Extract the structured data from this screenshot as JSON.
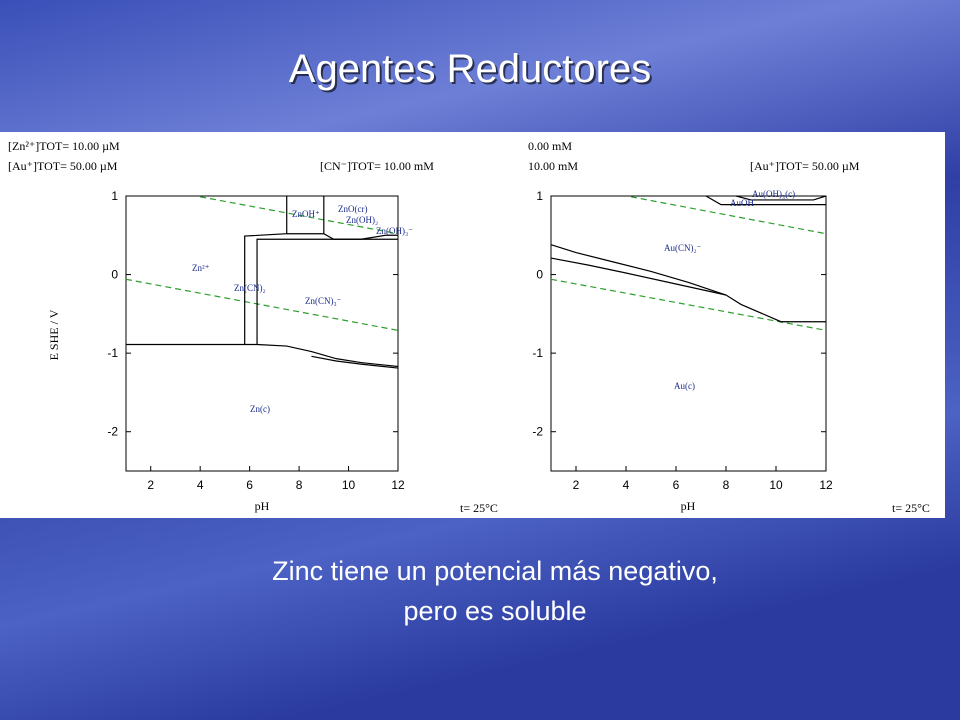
{
  "slide": {
    "title": "Agentes Reductores",
    "body": [
      "Zinc tiene un potencial más negativo,",
      "pero es soluble"
    ]
  },
  "chart_data": [
    {
      "type": "line",
      "xlabel": "pH",
      "ylabel": "E SHE / V",
      "headers": [
        "[Zn²⁺]TOT= 10.00 µM",
        "[Au⁺]TOT= 50.00 µM",
        "[CN⁻]TOT= 10.00 mM"
      ],
      "footer": "t= 25°C",
      "xlim": [
        1,
        12
      ],
      "ylim": [
        -2.5,
        1
      ],
      "xticks": [
        2,
        4,
        6,
        8,
        10,
        12
      ],
      "yticks": [
        1,
        0,
        -1,
        -2
      ],
      "annotations": [
        "ZnOH⁺",
        "ZnO(cr)",
        "Zn(OH)₂",
        "Zn(OH)₃⁻",
        "Zn²⁺",
        "Zn(CN)₂",
        "Zn(CN)₃⁻",
        "Zn(c)"
      ],
      "series": [
        {
          "color": "#2e9e2e",
          "style": "dashed",
          "x": [
            4,
            12
          ],
          "values": [
            0.99,
            0.52
          ]
        },
        {
          "color": "#2e9e2e",
          "style": "dashed",
          "x": [
            1,
            12
          ],
          "values": [
            -0.06,
            -0.71
          ]
        },
        {
          "color": "#000000",
          "style": "solid",
          "x": [
            1,
            5.8,
            6.3,
            7.5,
            8.5,
            9.5,
            10.5,
            12
          ],
          "values": [
            -0.89,
            -0.89,
            -0.89,
            -0.91,
            -0.98,
            -1.07,
            -1.12,
            -1.17
          ]
        },
        {
          "color": "#000000",
          "style": "solid",
          "x": [
            5.8,
            5.8,
            7.5,
            7.5
          ],
          "values": [
            -0.89,
            0.49,
            0.52,
            1
          ]
        },
        {
          "color": "#000000",
          "style": "solid",
          "x": [
            6.3,
            6.3,
            12
          ],
          "values": [
            -0.89,
            0.45,
            0.45
          ]
        },
        {
          "color": "#000000",
          "style": "solid",
          "x": [
            7.5,
            9,
            9.4,
            10.5,
            11.5,
            12
          ],
          "values": [
            0.52,
            0.52,
            0.45,
            0.45,
            0.5,
            0.5
          ]
        },
        {
          "color": "#000000",
          "style": "solid",
          "x": [
            9,
            9
          ],
          "values": [
            0.52,
            1
          ]
        },
        {
          "color": "#000000",
          "style": "solid",
          "x": [
            8.5,
            9.5,
            10.5,
            12
          ],
          "values": [
            -1.04,
            -1.1,
            -1.14,
            -1.19
          ]
        }
      ]
    },
    {
      "type": "line",
      "xlabel": "pH",
      "headers": [
        "0.00 mM",
        "10.00 mM",
        "[Au⁺]TOT= 50.00 µM"
      ],
      "footer": "t= 25°C",
      "xlim": [
        1,
        12
      ],
      "ylim": [
        -2.5,
        1
      ],
      "xticks": [
        2,
        4,
        6,
        8,
        10,
        12
      ],
      "yticks": [
        1,
        0,
        -1,
        -2
      ],
      "annotations": [
        "Au(OH)₃(c)",
        "AuOH",
        "Au(CN)₂⁻",
        "Au(c)"
      ],
      "series": [
        {
          "color": "#2e9e2e",
          "style": "dashed",
          "x": [
            4.2,
            12
          ],
          "values": [
            0.99,
            0.52
          ]
        },
        {
          "color": "#2e9e2e",
          "style": "dashed",
          "x": [
            1,
            12
          ],
          "values": [
            -0.06,
            -0.71
          ]
        },
        {
          "color": "#000000",
          "style": "solid",
          "x": [
            1,
            2,
            3.5,
            5,
            6.5,
            8,
            8.6,
            10.2,
            12
          ],
          "values": [
            0.38,
            0.28,
            0.16,
            0.04,
            -0.1,
            -0.26,
            -0.38,
            -0.6,
            -0.6
          ]
        },
        {
          "color": "#000000",
          "style": "solid",
          "x": [
            1,
            2.5,
            4,
            6,
            8
          ],
          "values": [
            0.21,
            0.12,
            0.02,
            -0.12,
            -0.26
          ]
        },
        {
          "color": "#000000",
          "style": "solid",
          "x": [
            7.2,
            7.8,
            12
          ],
          "values": [
            1,
            0.89,
            0.89
          ]
        },
        {
          "color": "#000000",
          "style": "solid",
          "x": [
            8.4,
            9,
            11.5,
            12
          ],
          "values": [
            1,
            0.95,
            0.95,
            1
          ]
        }
      ]
    }
  ]
}
